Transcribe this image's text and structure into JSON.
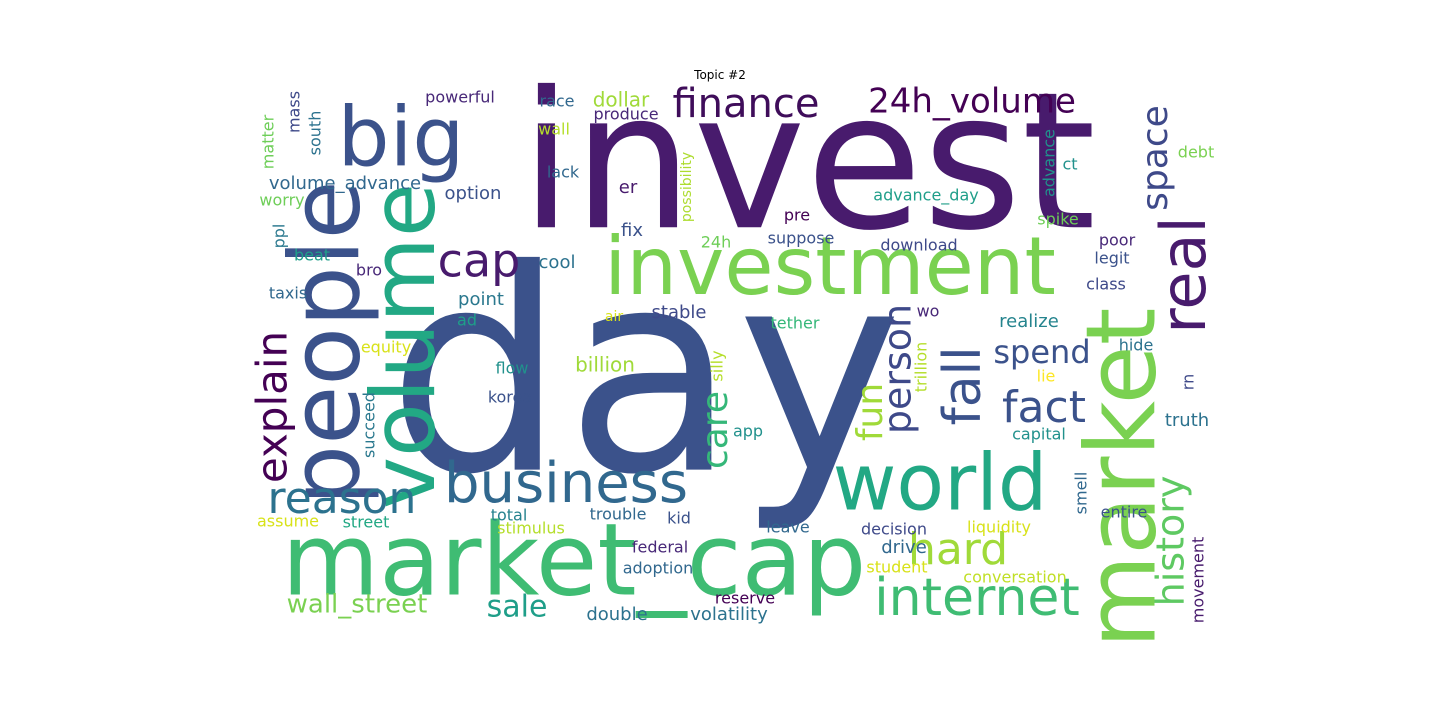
{
  "chart_data": {
    "type": "wordcloud",
    "title": "Topic #2",
    "words": [
      {
        "text": "day",
        "color": "#3b528b"
      },
      {
        "text": "invest",
        "color": "#481b6d"
      },
      {
        "text": "investment",
        "color": "#7ad151"
      },
      {
        "text": "market_cap",
        "color": "#3fbc73"
      },
      {
        "text": "market",
        "color": "#7ad151"
      },
      {
        "text": "people",
        "color": "#3b528b"
      },
      {
        "text": "big",
        "color": "#3b528b"
      },
      {
        "text": "volume",
        "color": "#22a884"
      },
      {
        "text": "world",
        "color": "#22a884"
      },
      {
        "text": "business",
        "color": "#31688e"
      },
      {
        "text": "real",
        "color": "#481b6d"
      },
      {
        "text": "internet",
        "color": "#3fbc73"
      },
      {
        "text": "finance",
        "color": "#3f0d5a"
      },
      {
        "text": "24h_volume",
        "color": "#440154"
      },
      {
        "text": "explain",
        "color": "#440154"
      },
      {
        "text": "reason",
        "color": "#2c728e"
      },
      {
        "text": "cap",
        "color": "#481b6d"
      },
      {
        "text": "fall",
        "color": "#3b528b"
      },
      {
        "text": "fact",
        "color": "#3b528b"
      },
      {
        "text": "hard",
        "color": "#a0da39"
      },
      {
        "text": "care",
        "color": "#35b779"
      },
      {
        "text": "person",
        "color": "#3e4989"
      },
      {
        "text": "history",
        "color": "#5ec962"
      },
      {
        "text": "space",
        "color": "#3e4989"
      },
      {
        "text": "fun",
        "color": "#a0da39"
      },
      {
        "text": "spend",
        "color": "#3b528b"
      },
      {
        "text": "wall_street",
        "color": "#7ad151"
      },
      {
        "text": "sale",
        "color": "#1f9e89"
      },
      {
        "text": "powerful",
        "color": "#482878"
      },
      {
        "text": "race",
        "color": "#31688e"
      },
      {
        "text": "dollar",
        "color": "#a0da39"
      },
      {
        "text": "produce",
        "color": "#482878"
      },
      {
        "text": "wall",
        "color": "#b5de2b"
      },
      {
        "text": "volume_advance",
        "color": "#31688e"
      },
      {
        "text": "option",
        "color": "#3b528b"
      },
      {
        "text": "lack",
        "color": "#31688e"
      },
      {
        "text": "er",
        "color": "#481b6d"
      },
      {
        "text": "possibility",
        "color": "#addc30"
      },
      {
        "text": "advance_day",
        "color": "#1f9e89"
      },
      {
        "text": "advance",
        "color": "#21918c"
      },
      {
        "text": "ct",
        "color": "#21918c"
      },
      {
        "text": "debt",
        "color": "#7ad151"
      },
      {
        "text": "spike",
        "color": "#6ece58"
      },
      {
        "text": "poor",
        "color": "#482878"
      },
      {
        "text": "legit",
        "color": "#3b528b"
      },
      {
        "text": "class",
        "color": "#3e4989"
      },
      {
        "text": "fix",
        "color": "#3b528b"
      },
      {
        "text": "pre",
        "color": "#440154"
      },
      {
        "text": "24h",
        "color": "#6ece58"
      },
      {
        "text": "suppose",
        "color": "#3b528b"
      },
      {
        "text": "download",
        "color": "#3e4989"
      },
      {
        "text": "cool",
        "color": "#2c728e"
      },
      {
        "text": "point",
        "color": "#2a788e"
      },
      {
        "text": "stable",
        "color": "#3e4989"
      },
      {
        "text": "ad",
        "color": "#1f9e89"
      },
      {
        "text": "air",
        "color": "#d8e219"
      },
      {
        "text": "tether",
        "color": "#35b779"
      },
      {
        "text": "wo",
        "color": "#482878"
      },
      {
        "text": "realize",
        "color": "#25848e"
      },
      {
        "text": "hide",
        "color": "#2c728e"
      },
      {
        "text": "rn",
        "color": "#3e4989"
      },
      {
        "text": "lie",
        "color": "#fde725"
      },
      {
        "text": "truth",
        "color": "#2c728e"
      },
      {
        "text": "capital",
        "color": "#21918c"
      },
      {
        "text": "matter",
        "color": "#6ece58"
      },
      {
        "text": "mass",
        "color": "#3e4989"
      },
      {
        "text": "south",
        "color": "#2c728e"
      },
      {
        "text": "worry",
        "color": "#6ece58"
      },
      {
        "text": "ppl",
        "color": "#2a788e"
      },
      {
        "text": "beat",
        "color": "#1f9e89"
      },
      {
        "text": "bro",
        "color": "#482878"
      },
      {
        "text": "taxis",
        "color": "#31688e"
      },
      {
        "text": "equity",
        "color": "#d8e219"
      },
      {
        "text": "succeed",
        "color": "#2a788e"
      },
      {
        "text": "billion",
        "color": "#a0da39"
      },
      {
        "text": "flow",
        "color": "#21918c"
      },
      {
        "text": "korea",
        "color": "#3b528b"
      },
      {
        "text": "silly",
        "color": "#b5de2b"
      },
      {
        "text": "trillion",
        "color": "#b5de2b"
      },
      {
        "text": "app",
        "color": "#21918c"
      },
      {
        "text": "assume",
        "color": "#d8e219"
      },
      {
        "text": "street",
        "color": "#22a884"
      },
      {
        "text": "total",
        "color": "#26828e"
      },
      {
        "text": "stimulus",
        "color": "#b5de2b"
      },
      {
        "text": "trouble",
        "color": "#31688e"
      },
      {
        "text": "kid",
        "color": "#3b528b"
      },
      {
        "text": "leave",
        "color": "#31688e"
      },
      {
        "text": "decision",
        "color": "#3e4989"
      },
      {
        "text": "liquidity",
        "color": "#d8e219"
      },
      {
        "text": "smell",
        "color": "#31688e"
      },
      {
        "text": "entire",
        "color": "#3b528b"
      },
      {
        "text": "drive",
        "color": "#31688e"
      },
      {
        "text": "federal",
        "color": "#482878"
      },
      {
        "text": "student",
        "color": "#d8e219"
      },
      {
        "text": "adoption",
        "color": "#31688e"
      },
      {
        "text": "conversation",
        "color": "#c0df25"
      },
      {
        "text": "movement",
        "color": "#481b6d"
      },
      {
        "text": "reserve",
        "color": "#440154"
      },
      {
        "text": "double",
        "color": "#2c728e"
      },
      {
        "text": "volatility",
        "color": "#2c728e"
      }
    ]
  }
}
